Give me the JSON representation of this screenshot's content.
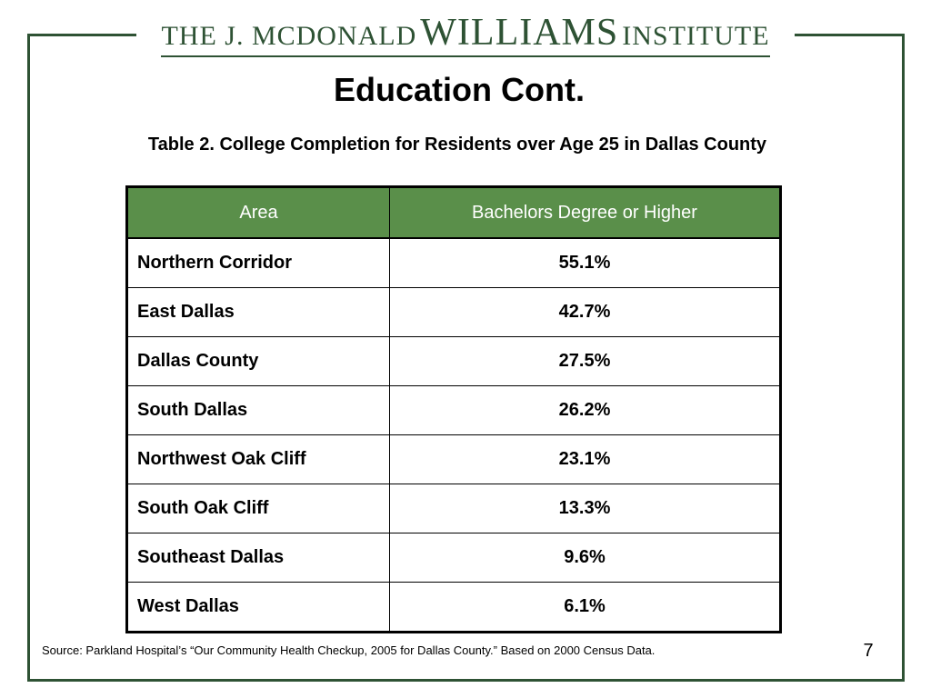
{
  "logo": {
    "prefix": "THE J. MCDONALD",
    "name": "WILLIAMS",
    "suffix": "INSTITUTE"
  },
  "slide": {
    "title": "Education Cont.",
    "subtitle": "Table 2.  College Completion for Residents over Age 25 in Dallas County",
    "source": "Source: Parkland Hospital’s  “Our Community Health Checkup, 2005 for Dallas County.”  Based on 2000 Census Data.",
    "page_number": "7"
  },
  "table": {
    "headers": [
      "Area",
      "Bachelors Degree or Higher"
    ],
    "rows": [
      {
        "area": "Northern Corridor",
        "value": "55.1%"
      },
      {
        "area": "East Dallas",
        "value": "42.7%"
      },
      {
        "area": "Dallas County",
        "value": "27.5%"
      },
      {
        "area": "South Dallas",
        "value": "26.2%"
      },
      {
        "area": "Northwest Oak Cliff",
        "value": "23.1%"
      },
      {
        "area": "South Oak Cliff",
        "value": "13.3%"
      },
      {
        "area": "Southeast Dallas",
        "value": "9.6%"
      },
      {
        "area": "West Dallas",
        "value": "6.1%"
      }
    ]
  },
  "colors": {
    "frame": "#2e5234",
    "header_fill": "#5a8f4a",
    "header_text": "#ffffff"
  }
}
